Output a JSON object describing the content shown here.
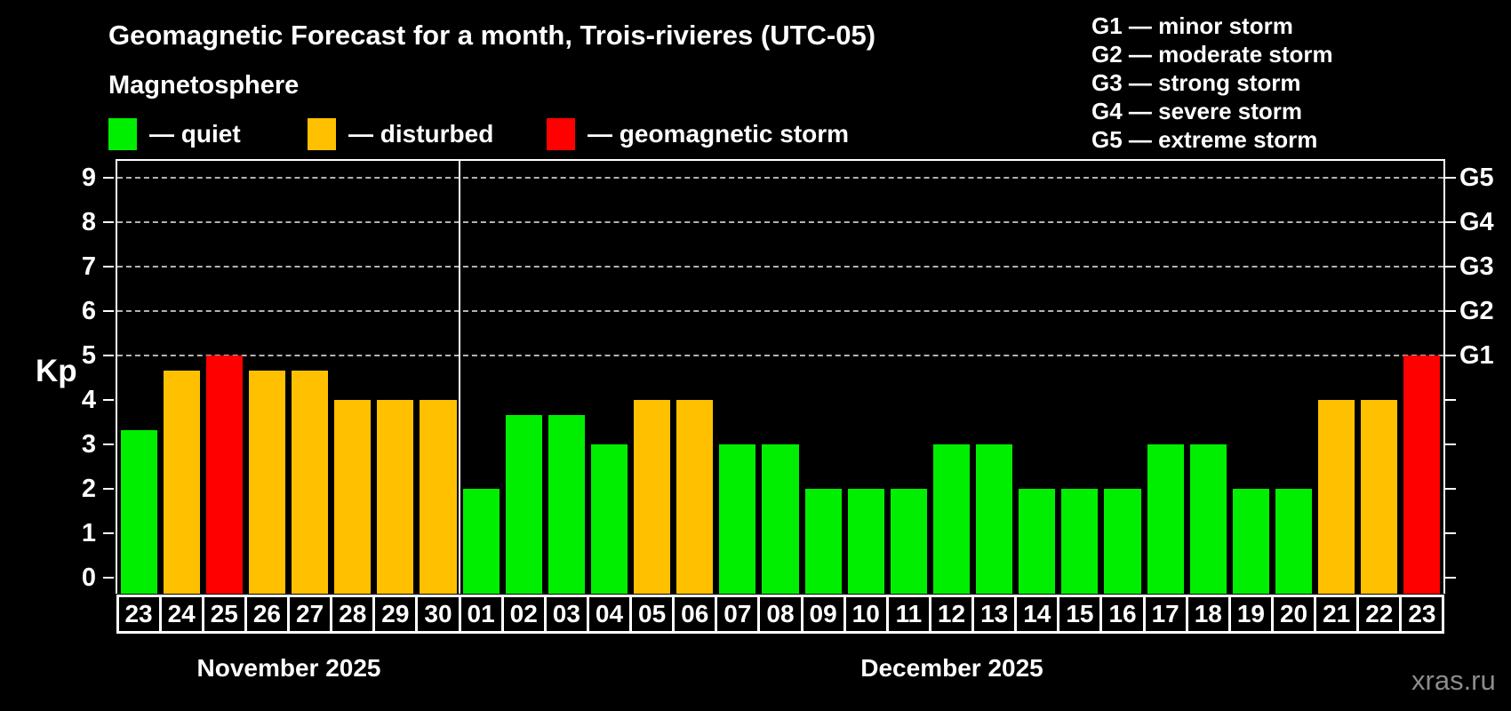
{
  "title": "Geomagnetic Forecast for a month, Trois-rivieres (UTC-05)",
  "subtitle": "Magnetosphere",
  "legend": {
    "items": [
      {
        "name": "quiet",
        "label": "— quiet",
        "color": "#00ef00"
      },
      {
        "name": "disturbed",
        "label": "— disturbed",
        "color": "#ffc000"
      },
      {
        "name": "geomagnetic-storm",
        "label": "— geomagnetic storm",
        "color": "#ff0000"
      }
    ]
  },
  "storm_legend": [
    "G1 — minor storm",
    "G2 — moderate storm",
    "G3 — strong storm",
    "G4 — severe storm",
    "G5 — extreme storm"
  ],
  "watermark": "xras.ru",
  "chart_data": {
    "type": "bar",
    "title": "Geomagnetic Forecast for a month, Trois-rivieres (UTC-05)",
    "ylabel": "Kp",
    "ylim": [
      0,
      9
    ],
    "yticks": [
      0,
      1,
      2,
      3,
      4,
      5,
      6,
      7,
      8,
      9
    ],
    "gridlines_at": [
      5,
      6,
      7,
      8,
      9
    ],
    "grid": "dashed horizontal at Kp 5-9",
    "right_axis_labels": [
      {
        "label": "G1",
        "kp": 5
      },
      {
        "label": "G2",
        "kp": 6
      },
      {
        "label": "G3",
        "kp": 7
      },
      {
        "label": "G4",
        "kp": 8
      },
      {
        "label": "G5",
        "kp": 9
      }
    ],
    "colors": {
      "quiet": "#00ef00",
      "disturbed": "#ffc000",
      "storm": "#ff0000"
    },
    "months": [
      {
        "label": "November 2025",
        "days": [
          {
            "day": "23",
            "kp": 3.33,
            "state": "quiet"
          },
          {
            "day": "24",
            "kp": 4.67,
            "state": "disturbed"
          },
          {
            "day": "25",
            "kp": 5.0,
            "state": "storm"
          },
          {
            "day": "26",
            "kp": 4.67,
            "state": "disturbed"
          },
          {
            "day": "27",
            "kp": 4.67,
            "state": "disturbed"
          },
          {
            "day": "28",
            "kp": 4.0,
            "state": "disturbed"
          },
          {
            "day": "29",
            "kp": 4.0,
            "state": "disturbed"
          },
          {
            "day": "30",
            "kp": 4.0,
            "state": "disturbed"
          }
        ]
      },
      {
        "label": "December 2025",
        "days": [
          {
            "day": "01",
            "kp": 2.0,
            "state": "quiet"
          },
          {
            "day": "02",
            "kp": 3.67,
            "state": "quiet"
          },
          {
            "day": "03",
            "kp": 3.67,
            "state": "quiet"
          },
          {
            "day": "04",
            "kp": 3.0,
            "state": "quiet"
          },
          {
            "day": "05",
            "kp": 4.0,
            "state": "disturbed"
          },
          {
            "day": "06",
            "kp": 4.0,
            "state": "disturbed"
          },
          {
            "day": "07",
            "kp": 3.0,
            "state": "quiet"
          },
          {
            "day": "08",
            "kp": 3.0,
            "state": "quiet"
          },
          {
            "day": "09",
            "kp": 2.0,
            "state": "quiet"
          },
          {
            "day": "10",
            "kp": 2.0,
            "state": "quiet"
          },
          {
            "day": "11",
            "kp": 2.0,
            "state": "quiet"
          },
          {
            "day": "12",
            "kp": 3.0,
            "state": "quiet"
          },
          {
            "day": "13",
            "kp": 3.0,
            "state": "quiet"
          },
          {
            "day": "14",
            "kp": 2.0,
            "state": "quiet"
          },
          {
            "day": "15",
            "kp": 2.0,
            "state": "quiet"
          },
          {
            "day": "16",
            "kp": 2.0,
            "state": "quiet"
          },
          {
            "day": "17",
            "kp": 3.0,
            "state": "quiet"
          },
          {
            "day": "18",
            "kp": 3.0,
            "state": "quiet"
          },
          {
            "day": "19",
            "kp": 2.0,
            "state": "quiet"
          },
          {
            "day": "20",
            "kp": 2.0,
            "state": "quiet"
          },
          {
            "day": "21",
            "kp": 4.0,
            "state": "disturbed"
          },
          {
            "day": "22",
            "kp": 4.0,
            "state": "disturbed"
          },
          {
            "day": "23",
            "kp": 5.0,
            "state": "storm"
          }
        ]
      }
    ]
  }
}
